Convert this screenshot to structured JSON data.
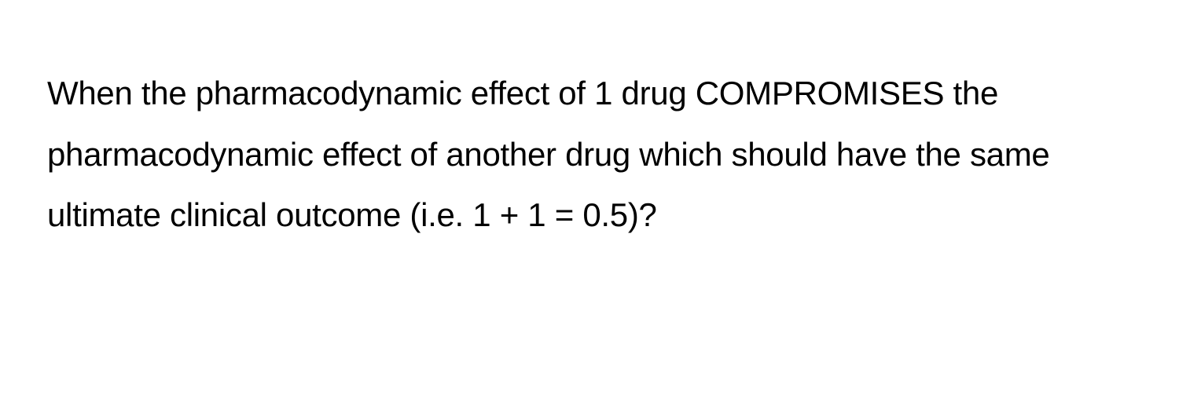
{
  "question": {
    "text": "When the pharmacodynamic effect of 1 drug COMPROMISES the pharmacodynamic effect of another drug which should have the same ultimate clinical outcome (i.e. 1 + 1 = 0.5)?",
    "font_size": 42,
    "line_height": 1.85,
    "color": "#000000",
    "background_color": "#ffffff",
    "font_weight": 400
  }
}
